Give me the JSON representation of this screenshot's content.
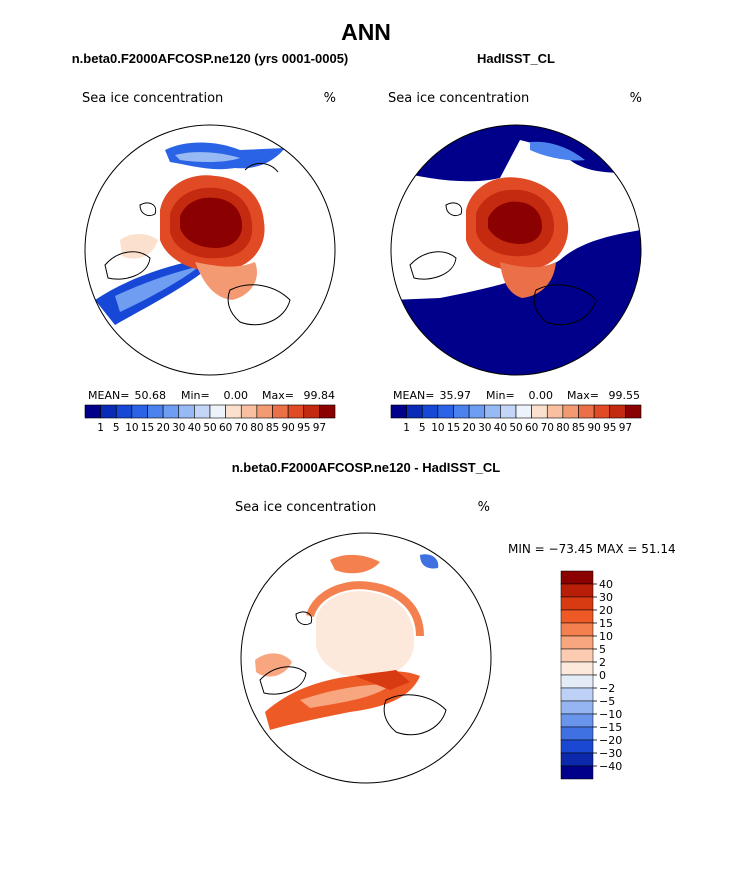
{
  "chart_data": {
    "type": "polar-map",
    "title": "ANN",
    "panels": [
      {
        "id": "model",
        "subtitle": "n.beta0.F2000AFCOSP.ne120 (yrs 0001-0005)",
        "variable": "Sea ice concentration",
        "units": "%",
        "stats": {
          "mean_label": "MEAN=",
          "mean": "50.68",
          "min_label": "Min=",
          "min": "0.00",
          "max_label": "Max=",
          "max": "99.84"
        }
      },
      {
        "id": "obs",
        "subtitle": "HadISST_CL",
        "variable": "Sea ice concentration",
        "units": "%",
        "stats": {
          "mean_label": "MEAN=",
          "mean": "35.97",
          "min_label": "Min=",
          "min": "0.00",
          "max_label": "Max=",
          "max": "99.55"
        }
      },
      {
        "id": "diff",
        "subtitle": "n.beta0.F2000AFCOSP.ne120 - HadISST_CL",
        "variable": "Sea ice concentration",
        "units": "%",
        "minmax_text": "MIN = −73.45 MAX =  51.14"
      }
    ],
    "colorbar_abs": {
      "levels": [
        "1",
        "5",
        "10",
        "15",
        "20",
        "30",
        "40",
        "50",
        "60",
        "70",
        "80",
        "85",
        "90",
        "95",
        "97"
      ],
      "colors": [
        "#00008b",
        "#0a2bb8",
        "#1747d6",
        "#2b63e6",
        "#4b82ee",
        "#6e9df2",
        "#97baf5",
        "#c3d6f8",
        "#eef2fb",
        "#fbe0cd",
        "#f8c0a0",
        "#f39a73",
        "#ec7047",
        "#e04a24",
        "#c42a10",
        "#8b0000"
      ]
    },
    "colorbar_diff": {
      "levels": [
        "40",
        "30",
        "20",
        "15",
        "10",
        "5",
        "2",
        "0",
        "−2",
        "−5",
        "−10",
        "−15",
        "−20",
        "−30",
        "−40"
      ],
      "colors": [
        "#8b0000",
        "#b81e08",
        "#d83a12",
        "#ee5a26",
        "#f5804f",
        "#f8a67f",
        "#fbccb1",
        "#fce9dc",
        "#e4ecf8",
        "#bcd1f5",
        "#94b5f1",
        "#6a95ec",
        "#3f71e3",
        "#1a48d2",
        "#0b29aa",
        "#00008b"
      ]
    }
  }
}
